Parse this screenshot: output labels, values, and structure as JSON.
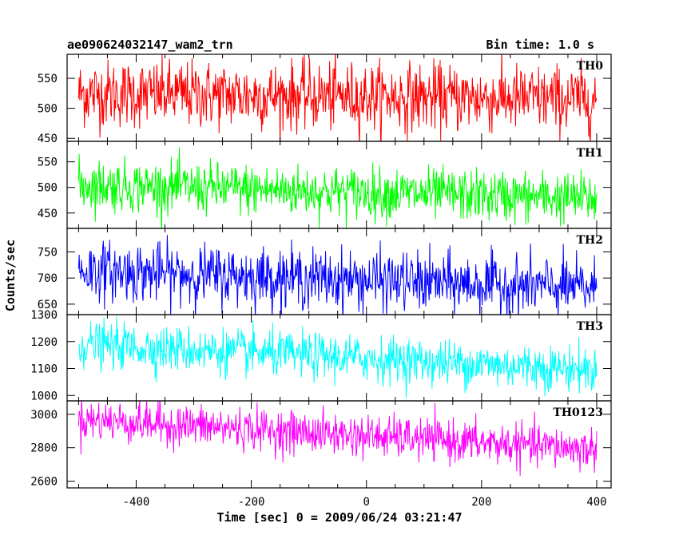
{
  "chart_data": {
    "type": "line",
    "title": "ae090624032147_wam2_trn",
    "subtitle": "Bin time: 1.0 s",
    "xlabel": "Time [sec] 0 = 2009/06/24 03:21:47",
    "ylabel": "Counts/sec",
    "xlim": [
      -520,
      425
    ],
    "x_ticks": [
      -400,
      -200,
      0,
      200,
      400
    ],
    "x_range": [
      -500,
      400
    ],
    "bin_time_s": 1.0,
    "grid": false,
    "series": [
      {
        "name": "TH0",
        "color": "#ff0000",
        "ylim": [
          445,
          590
        ],
        "y_ticks": [
          450,
          500,
          550
        ],
        "trend_start": 525,
        "trend_end": 515,
        "noise": 28
      },
      {
        "name": "TH1",
        "color": "#00ff00",
        "ylim": [
          420,
          590
        ],
        "y_ticks": [
          450,
          500,
          550
        ],
        "trend_start": 505,
        "trend_end": 478,
        "noise": 25
      },
      {
        "name": "TH2",
        "color": "#0000ff",
        "ylim": [
          630,
          795
        ],
        "y_ticks": [
          650,
          700,
          750
        ],
        "trend_start": 715,
        "trend_end": 680,
        "noise": 28
      },
      {
        "name": "TH3",
        "color": "#00ffff",
        "ylim": [
          980,
          1300
        ],
        "y_ticks": [
          1000,
          1100,
          1200,
          1300
        ],
        "trend_start": 1190,
        "trend_end": 1095,
        "noise": 42
      },
      {
        "name": "TH0123",
        "color": "#ff00ff",
        "ylim": [
          2560,
          3080
        ],
        "y_ticks": [
          2600,
          2800,
          3000
        ],
        "trend_start": 2970,
        "trend_end": 2790,
        "noise": 62
      }
    ]
  }
}
